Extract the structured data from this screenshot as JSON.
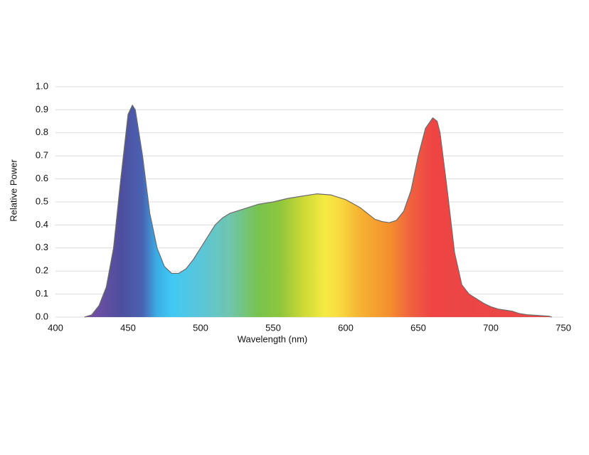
{
  "chart_data": {
    "type": "area",
    "xlabel": "Wavelength (nm)",
    "ylabel": "Relative Power",
    "x": [
      420,
      425,
      430,
      435,
      440,
      445,
      450,
      453,
      455,
      460,
      465,
      470,
      475,
      480,
      485,
      490,
      495,
      500,
      505,
      510,
      515,
      520,
      530,
      540,
      550,
      560,
      570,
      580,
      590,
      600,
      610,
      615,
      620,
      625,
      630,
      635,
      640,
      645,
      650,
      655,
      660,
      663,
      665,
      670,
      675,
      680,
      685,
      690,
      695,
      700,
      705,
      710,
      715,
      720,
      725,
      730,
      735,
      740,
      742
    ],
    "values": [
      0.0,
      0.01,
      0.05,
      0.13,
      0.3,
      0.6,
      0.88,
      0.92,
      0.9,
      0.7,
      0.45,
      0.3,
      0.22,
      0.19,
      0.19,
      0.21,
      0.25,
      0.3,
      0.35,
      0.4,
      0.43,
      0.45,
      0.47,
      0.49,
      0.5,
      0.515,
      0.525,
      0.535,
      0.53,
      0.51,
      0.475,
      0.45,
      0.425,
      0.415,
      0.41,
      0.42,
      0.46,
      0.55,
      0.7,
      0.82,
      0.865,
      0.85,
      0.8,
      0.55,
      0.28,
      0.14,
      0.1,
      0.08,
      0.06,
      0.045,
      0.035,
      0.03,
      0.025,
      0.015,
      0.01,
      0.008,
      0.006,
      0.004,
      0.0
    ],
    "xlim": [
      400,
      750
    ],
    "xticks": [
      400,
      450,
      500,
      550,
      600,
      650,
      700,
      750
    ],
    "ylim": [
      0,
      1
    ],
    "yticks": [
      {
        "value": 0,
        "label": "0.0"
      },
      0.1,
      0.2,
      0.3,
      0.4,
      0.5,
      0.6,
      0.7,
      0.8,
      0.9,
      {
        "value": 1,
        "label": "1.0"
      }
    ],
    "grid": true,
    "line_color": "#6b6b6b"
  }
}
